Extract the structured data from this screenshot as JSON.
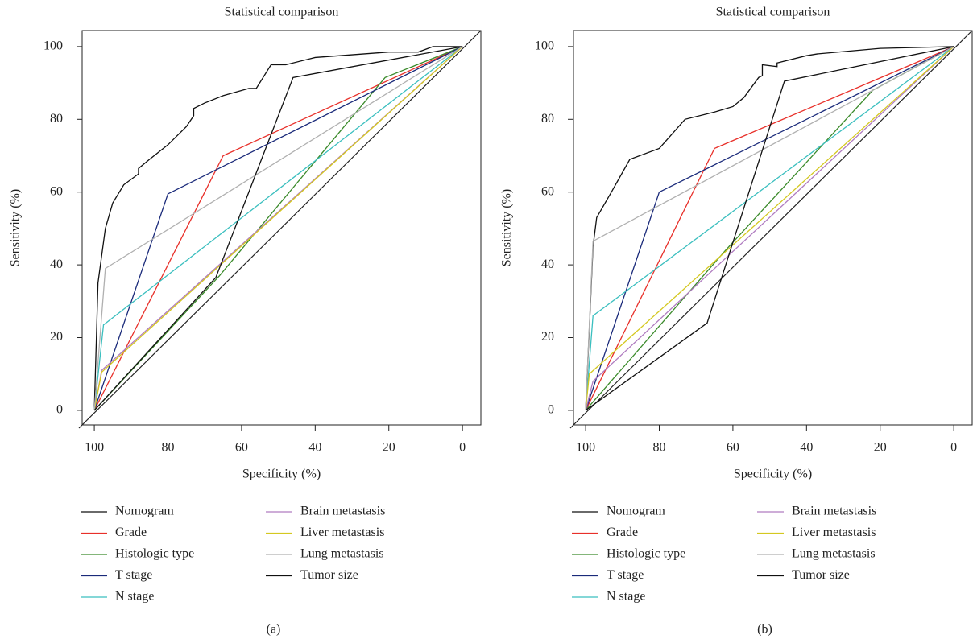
{
  "chart_data": [
    {
      "type": "line",
      "title": "Statistical comparison",
      "xlabel": "Specificity (%)",
      "ylabel": "Sensitivity (%)",
      "caption": "(a)",
      "xlim": [
        103.3,
        -5
      ],
      "ylim": [
        -4,
        104.4
      ],
      "xticks": [
        100,
        80,
        60,
        40,
        20,
        0
      ],
      "yticks": [
        0,
        20,
        40,
        60,
        80,
        100
      ],
      "series": [
        {
          "name": "Nomogram",
          "color": "#111111",
          "x": [
            100,
            99,
            97,
            95,
            92,
            88,
            88,
            85,
            80,
            75,
            73,
            73,
            70,
            65,
            58,
            56,
            52,
            48,
            40,
            20,
            12,
            8,
            0
          ],
          "values": [
            0,
            35,
            50,
            57,
            62,
            65,
            66.5,
            69,
            73,
            78,
            81,
            83,
            84.5,
            86.5,
            88.5,
            88.5,
            95,
            95,
            97,
            98.5,
            98.5,
            100,
            100
          ]
        },
        {
          "name": "Grade",
          "color": "#e8302a",
          "x": [
            100,
            65,
            0
          ],
          "values": [
            0,
            70,
            100
          ]
        },
        {
          "name": "Histologic type",
          "color": "#3a8a2a",
          "x": [
            100,
            66,
            21,
            0
          ],
          "values": [
            0,
            37,
            91.5,
            100
          ]
        },
        {
          "name": "T stage",
          "color": "#1a2a7a",
          "x": [
            100,
            80,
            0
          ],
          "values": [
            0,
            59.5,
            100
          ]
        },
        {
          "name": "N stage",
          "color": "#3bbfbf",
          "x": [
            100,
            97.5,
            0
          ],
          "values": [
            0,
            23.5,
            100
          ]
        },
        {
          "name": "Brain metastasis",
          "color": "#b07cc0",
          "x": [
            100,
            98,
            0
          ],
          "values": [
            0,
            11,
            100
          ]
        },
        {
          "name": "Liver metastasis",
          "color": "#d4c820",
          "x": [
            100,
            98,
            0
          ],
          "values": [
            0,
            10.5,
            100
          ]
        },
        {
          "name": "Lung metastasis",
          "color": "#b0b0b0",
          "x": [
            100,
            97,
            0
          ],
          "values": [
            0,
            39,
            100
          ]
        },
        {
          "name": "Tumor size",
          "color": "#111111",
          "x": [
            100,
            67,
            46,
            0
          ],
          "values": [
            0,
            36.5,
            91.5,
            100
          ]
        }
      ]
    },
    {
      "type": "line",
      "title": "Statistical comparison",
      "xlabel": "Specificity (%)",
      "ylabel": "Sensitivity (%)",
      "caption": "(b)",
      "xlim": [
        103.3,
        -5
      ],
      "ylim": [
        -4,
        104.4
      ],
      "xticks": [
        100,
        80,
        60,
        40,
        20,
        0
      ],
      "yticks": [
        0,
        20,
        40,
        60,
        80,
        100
      ],
      "series": [
        {
          "name": "Nomogram",
          "color": "#111111",
          "x": [
            100,
            98,
            97,
            93,
            88,
            80,
            73,
            65,
            60,
            57,
            53,
            52,
            52,
            48,
            48,
            40,
            37,
            20,
            0
          ],
          "values": [
            0,
            45,
            53,
            60,
            69,
            72,
            80,
            82,
            83.5,
            86,
            91.5,
            92,
            95,
            94.5,
            95.5,
            97.5,
            98,
            99.5,
            100
          ]
        },
        {
          "name": "Grade",
          "color": "#e8302a",
          "x": [
            100,
            65,
            0
          ],
          "values": [
            0,
            72,
            100
          ]
        },
        {
          "name": "Histologic type",
          "color": "#3a8a2a",
          "x": [
            100,
            62,
            22,
            0
          ],
          "values": [
            0,
            44,
            88,
            100
          ]
        },
        {
          "name": "T stage",
          "color": "#1a2a7a",
          "x": [
            100,
            80,
            0
          ],
          "values": [
            0,
            60,
            100
          ]
        },
        {
          "name": "N stage",
          "color": "#3bbfbf",
          "x": [
            100,
            98,
            0
          ],
          "values": [
            0,
            26,
            100
          ]
        },
        {
          "name": "Brain metastasis",
          "color": "#b07cc0",
          "x": [
            100,
            98,
            0
          ],
          "values": [
            0,
            8,
            100
          ]
        },
        {
          "name": "Liver metastasis",
          "color": "#d4c820",
          "x": [
            100,
            99,
            0
          ],
          "values": [
            0,
            10,
            100
          ]
        },
        {
          "name": "Lung metastasis",
          "color": "#b0b0b0",
          "x": [
            100,
            98,
            0
          ],
          "values": [
            0,
            46.5,
            100
          ]
        },
        {
          "name": "Tumor size",
          "color": "#111111",
          "x": [
            100,
            67,
            46,
            0
          ],
          "values": [
            0,
            24,
            90.5,
            100
          ]
        }
      ]
    }
  ]
}
